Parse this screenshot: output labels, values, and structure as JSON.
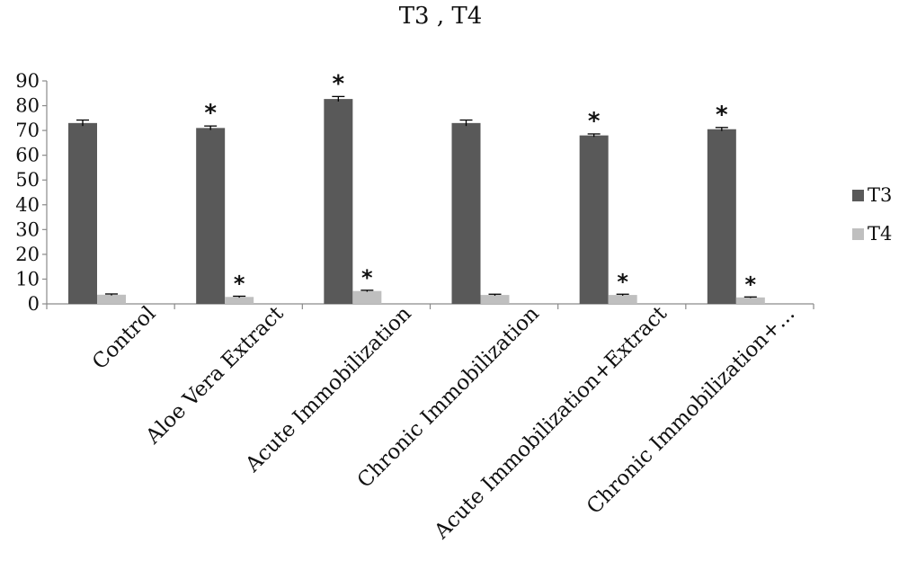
{
  "chart_data": {
    "type": "bar",
    "title": "T3 , T4",
    "xlabel": "",
    "ylabel": "",
    "ylim": [
      0,
      90
    ],
    "yticks": [
      0,
      10,
      20,
      30,
      40,
      50,
      60,
      70,
      80,
      90
    ],
    "grid": false,
    "legend_position": "right",
    "categories": [
      "Control",
      "Aloe Vera Extract",
      "Acute Immobilization",
      "Chronic Immobilization",
      "Acute Immobilization+Extract",
      "Chronic Immobilization+..."
    ],
    "series": [
      {
        "name": "T3",
        "color": "#595959",
        "values": [
          73,
          71,
          82.7,
          73,
          68,
          70.5
        ],
        "errors": [
          1.2,
          0.8,
          1.0,
          1.2,
          0.6,
          0.7
        ],
        "significance": [
          "",
          "*",
          "*",
          "",
          "*",
          "*"
        ]
      },
      {
        "name": "T4",
        "color": "#bfbfbf",
        "values": [
          3.7,
          2.8,
          5.2,
          3.6,
          3.6,
          2.6
        ],
        "errors": [
          0.3,
          0.3,
          0.3,
          0.3,
          0.3,
          0.2
        ],
        "significance": [
          "",
          "*",
          "*",
          "",
          "*",
          "*"
        ]
      }
    ]
  }
}
